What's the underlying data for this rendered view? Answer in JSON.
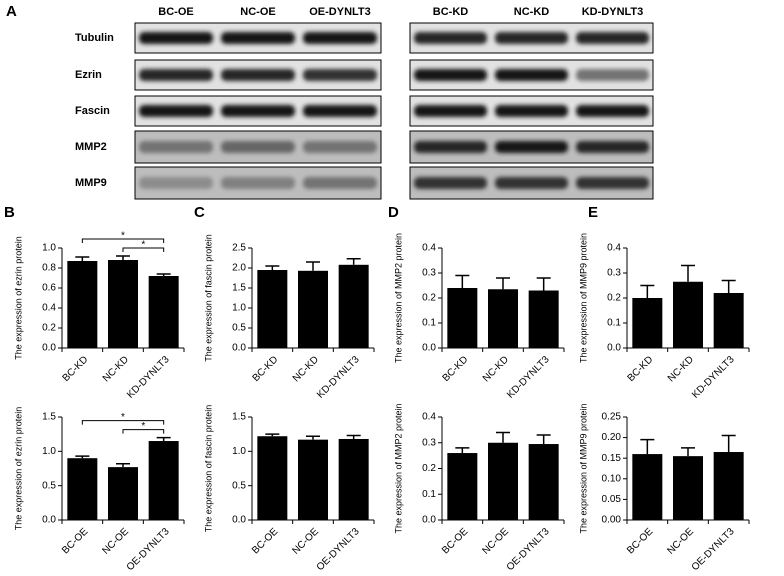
{
  "panel_labels": [
    "A",
    "B",
    "C",
    "D",
    "E"
  ],
  "blots": {
    "left_lanes": [
      "BC-OE",
      "NC-OE",
      "OE-DYNLT3"
    ],
    "right_lanes": [
      "BC-KD",
      "NC-KD",
      "KD-DYNLT3"
    ],
    "rows": [
      "Tubulin",
      "Ezrin",
      "Fascin",
      "MMP2",
      "MMP9"
    ]
  },
  "chart_data": [
    {
      "type": "bar",
      "ylabel": "The expression of ezrin protein",
      "categories": [
        "BC-KD",
        "NC-KD",
        "KD-DYNLT3"
      ],
      "values": [
        0.87,
        0.88,
        0.72
      ],
      "errors": [
        0.04,
        0.04,
        0.02
      ],
      "color": "#000000",
      "ylim": [
        0,
        1.0
      ],
      "yticks": [
        {
          "value": 0,
          "label": "0.0"
        },
        0.2,
        0.4,
        0.6,
        0.8,
        {
          "value": 1,
          "label": "1.0"
        }
      ],
      "annotations": [
        "*",
        "*"
      ]
    },
    {
      "type": "bar",
      "ylabel": "The expression of ezrin protein",
      "categories": [
        "BC-OE",
        "NC-OE",
        "OE-DYNLT3"
      ],
      "values": [
        0.9,
        0.77,
        1.15
      ],
      "errors": [
        0.03,
        0.05,
        0.05
      ],
      "color": "#000000",
      "ylim": [
        0,
        1.5
      ],
      "yticks": [
        {
          "value": 0,
          "label": "0.0"
        },
        0.5,
        {
          "value": 1,
          "label": "1.0"
        },
        1.5
      ],
      "annotations": [
        "*",
        "*"
      ]
    },
    {
      "type": "bar",
      "ylabel": "The expression of fascin protein",
      "categories": [
        "BC-KD",
        "NC-KD",
        "KD-DYNLT3"
      ],
      "values": [
        1.95,
        1.93,
        2.08
      ],
      "errors": [
        0.1,
        0.22,
        0.15
      ],
      "color": "#000000",
      "ylim": [
        0,
        2.5
      ],
      "yticks": [
        {
          "value": 0,
          "label": "0.0"
        },
        0.5,
        {
          "value": 1,
          "label": "1.0"
        },
        1.5,
        {
          "value": 2,
          "label": "2.0"
        },
        2.5
      ]
    },
    {
      "type": "bar",
      "ylabel": "The expression of fascin protein",
      "categories": [
        "BC-OE",
        "NC-OE",
        "OE-DYNLT3"
      ],
      "values": [
        1.22,
        1.17,
        1.18
      ],
      "errors": [
        0.03,
        0.05,
        0.05
      ],
      "color": "#000000",
      "ylim": [
        0,
        1.5
      ],
      "yticks": [
        {
          "value": 0,
          "label": "0.0"
        },
        0.5,
        {
          "value": 1,
          "label": "1.0"
        },
        1.5
      ]
    },
    {
      "type": "bar",
      "ylabel": "The expression of MMP2 protein",
      "categories": [
        "BC-KD",
        "NC-KD",
        "KD-DYNLT3"
      ],
      "values": [
        0.24,
        0.235,
        0.23
      ],
      "errors": [
        0.05,
        0.045,
        0.05
      ],
      "color": "#000000",
      "ylim": [
        0,
        0.4
      ],
      "yticks": [
        {
          "value": 0,
          "label": "0.0"
        },
        0.1,
        0.2,
        0.3,
        0.4
      ]
    },
    {
      "type": "bar",
      "ylabel": "The expression of MMP2 protein",
      "categories": [
        "BC-OE",
        "NC-OE",
        "OE-DYNLT3"
      ],
      "values": [
        0.26,
        0.3,
        0.295
      ],
      "errors": [
        0.02,
        0.04,
        0.035
      ],
      "color": "#000000",
      "ylim": [
        0,
        0.4
      ],
      "yticks": [
        {
          "value": 0,
          "label": "0.0"
        },
        0.1,
        0.2,
        0.3,
        0.4
      ]
    },
    {
      "type": "bar",
      "ylabel": "The expression of MMP9 protein",
      "categories": [
        "BC-KD",
        "NC-KD",
        "KD-DYNLT3"
      ],
      "values": [
        0.2,
        0.265,
        0.22
      ],
      "errors": [
        0.05,
        0.065,
        0.05
      ],
      "color": "#000000",
      "ylim": [
        0,
        0.4
      ],
      "yticks": [
        {
          "value": 0,
          "label": "0.0"
        },
        0.1,
        0.2,
        0.3,
        0.4
      ]
    },
    {
      "type": "bar",
      "ylabel": "The expression of MMP9 protein",
      "categories": [
        "BC-OE",
        "NC-OE",
        "OE-DYNLT3"
      ],
      "values": [
        0.16,
        0.155,
        0.165
      ],
      "errors": [
        0.035,
        0.02,
        0.04
      ],
      "color": "#000000",
      "ylim": [
        0,
        0.25
      ],
      "yticks": [
        {
          "value": 0,
          "label": "0.00"
        },
        0.05,
        {
          "value": 0.1,
          "label": "0.10"
        },
        0.15,
        {
          "value": 0.2,
          "label": "0.20"
        },
        0.25
      ]
    }
  ]
}
